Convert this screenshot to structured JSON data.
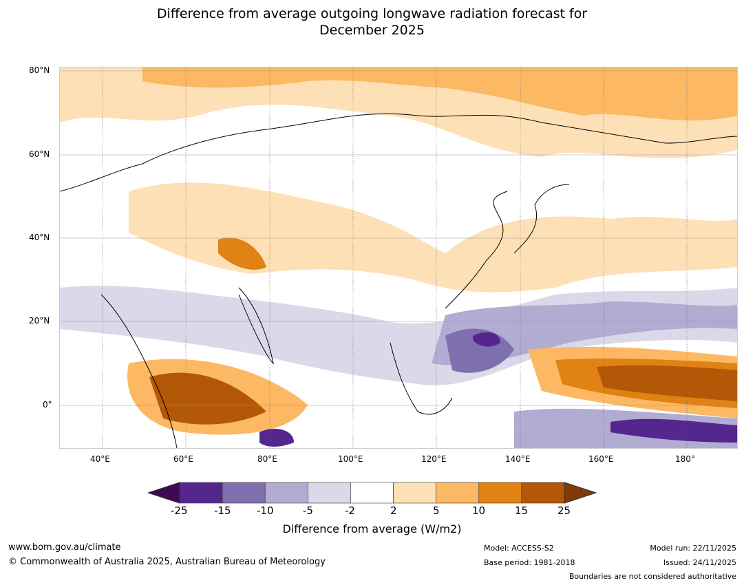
{
  "title": {
    "line1": "Difference from average outgoing longwave radiation forecast for",
    "line2": "December 2025"
  },
  "map": {
    "lat_labels": [
      "80°N",
      "60°N",
      "40°N",
      "20°N",
      "0°"
    ],
    "lon_labels": [
      "40°E",
      "60°E",
      "80°E",
      "100°E",
      "120°E",
      "140°E",
      "160°E",
      "180°"
    ]
  },
  "legend": {
    "ticks": [
      "-25",
      "-15",
      "-10",
      "-5",
      "-2",
      "2",
      "5",
      "10",
      "15",
      "25"
    ],
    "colors": [
      "#3f0a52",
      "#54278f",
      "#7f6fad",
      "#b2abd2",
      "#d9d9ea",
      "#ffffff",
      "#fee0b6",
      "#fdb863",
      "#e08214",
      "#b35806",
      "#7f3b08"
    ],
    "label": "Difference from average (W/m2)"
  },
  "footer": {
    "url": "www.bom.gov.au/climate",
    "copyright": "© Commonwealth of Australia 2025, Australian Bureau of Meteorology",
    "model": "Model: ACCESS-S2",
    "base_period": "Base period: 1981-2018",
    "model_run": "Model run: 22/11/2025",
    "issued": "Issued: 24/11/2025",
    "disclaimer": "Boundaries are not considered authoritative"
  }
}
